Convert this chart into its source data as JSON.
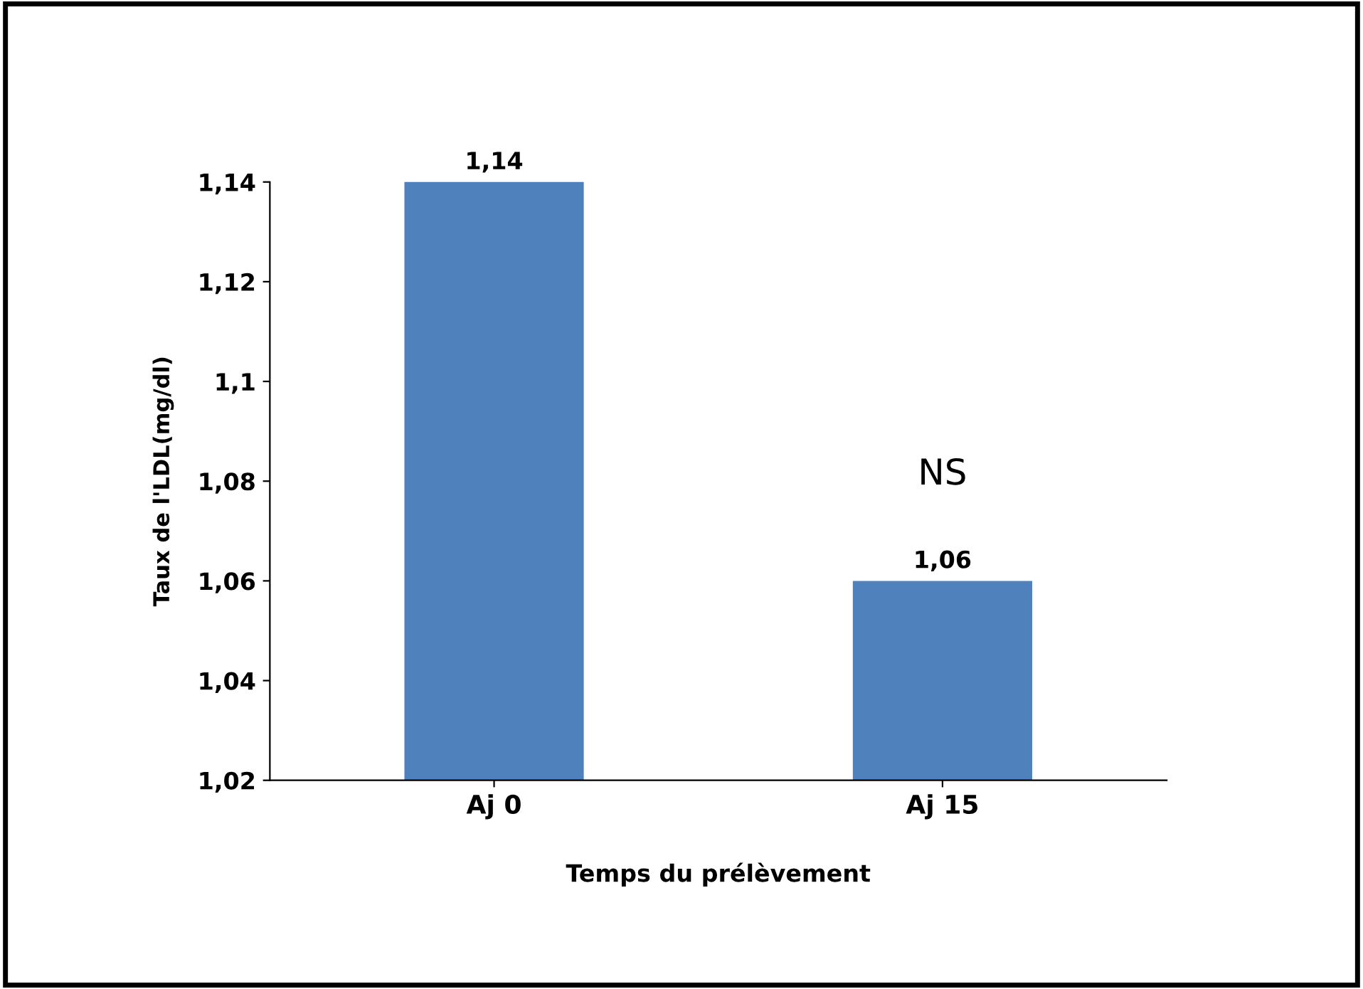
{
  "chart_data": {
    "type": "bar",
    "xlabel": "Temps du prélèvement",
    "ylabel": "Taux de l'LDL(mg/dl)",
    "categories": [
      "Aj 0",
      "Aj 15"
    ],
    "values": [
      1.14,
      1.06
    ],
    "value_labels": [
      "1,14",
      "1,06"
    ],
    "color": "#4f81bd",
    "ylim": [
      1.02,
      1.14
    ],
    "yticks": [
      {
        "value": 1.02,
        "label": "1,02"
      },
      {
        "value": 1.04,
        "label": "1,04"
      },
      {
        "value": 1.06,
        "label": "1,06"
      },
      {
        "value": 1.08,
        "label": "1,08"
      },
      {
        "value": 1.1,
        "label": "1,1"
      },
      {
        "value": 1.12,
        "label": "1,12"
      },
      {
        "value": 1.14,
        "label": "1,14"
      }
    ],
    "annotations": [
      "NS"
    ],
    "grid": false,
    "legend": false
  }
}
